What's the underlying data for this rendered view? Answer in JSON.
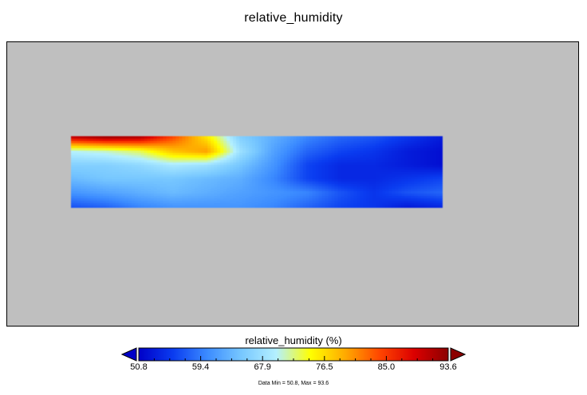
{
  "chart_data": {
    "type": "heatmap",
    "title": "relative_humidity",
    "colorbar": {
      "label": "relative_humidity (%)",
      "ticks": [
        "50.8",
        "59.4",
        "67.9",
        "76.5",
        "85.0",
        "93.6"
      ],
      "vmin": 50.8,
      "vmax": 93.6,
      "extend": "both",
      "colormap": [
        "#0000c8",
        "#0a3cf0",
        "#3c8cff",
        "#78c8ff",
        "#b4f0ff",
        "#ffff00",
        "#ffaa00",
        "#ff4600",
        "#dc0000",
        "#8c0000"
      ],
      "under_color": "#0000c8",
      "over_color": "#8c0000"
    },
    "missing_color": "#bfbfbf",
    "grid": {
      "rows": 6,
      "cols": 12,
      "values": [
        [
          90,
          92,
          91,
          84,
          76,
          66,
          63,
          60,
          58,
          57,
          55,
          53
        ],
        [
          70,
          71,
          73,
          78,
          80,
          68,
          62,
          58,
          56,
          55,
          53,
          52
        ],
        [
          66,
          66,
          67,
          69,
          68,
          65,
          61,
          56,
          54,
          54,
          53,
          52
        ],
        [
          64,
          65,
          65,
          65,
          64,
          63,
          60,
          56,
          54,
          54,
          55,
          56
        ],
        [
          61,
          62,
          63,
          64,
          63,
          62,
          61,
          60,
          57,
          55,
          57,
          58
        ],
        [
          57,
          58,
          60,
          61,
          61,
          61,
          60,
          58,
          56,
          55,
          53,
          54
        ]
      ]
    },
    "footer": "Data Min = 50.8, Max = 93.6"
  }
}
